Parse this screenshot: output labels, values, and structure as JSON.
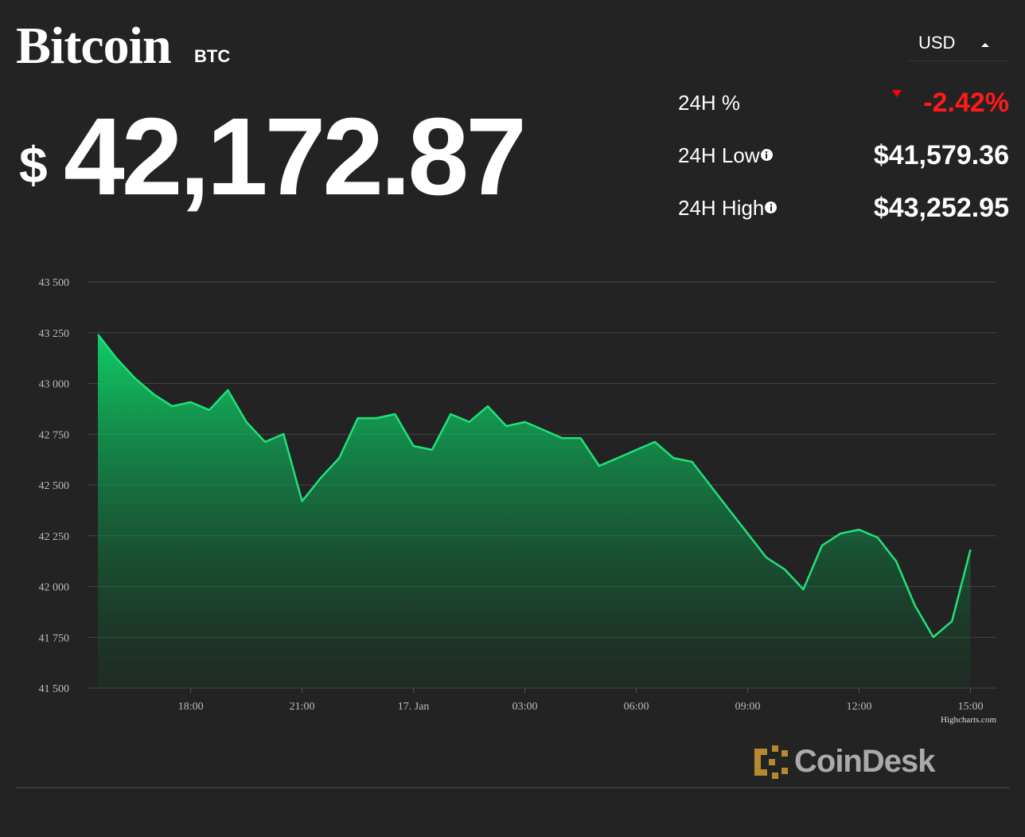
{
  "header": {
    "title": "Bitcoin",
    "symbol": "BTC",
    "currency_symbol": "$",
    "price": "42,172.87",
    "currency": "USD"
  },
  "stats": [
    {
      "label": "24H %",
      "value": "-2.42%"
    },
    {
      "label": "24H Low",
      "value": "$41,579.36"
    },
    {
      "label": "24H High",
      "value": "$43,252.95"
    }
  ],
  "chart_data": {
    "type": "area",
    "color": "#1fe27a",
    "x": [
      "15:30",
      "16:00",
      "16:30",
      "17:00",
      "17:30",
      "18:00",
      "18:30",
      "19:00",
      "19:30",
      "20:00",
      "20:30",
      "21:00",
      "21:30",
      "22:00",
      "22:30",
      "23:00",
      "23:30",
      "00:00",
      "00:30",
      "01:00",
      "01:30",
      "02:00",
      "02:30",
      "03:00",
      "03:30",
      "04:00",
      "04:30",
      "05:00",
      "05:30",
      "06:00",
      "06:30",
      "07:00",
      "07:30",
      "08:00",
      "08:30",
      "09:00",
      "09:30",
      "10:00",
      "10:30",
      "11:00",
      "11:30",
      "12:00",
      "12:30",
      "13:00",
      "13:30",
      "14:00",
      "14:30",
      "15:00"
    ],
    "values": [
      43241,
      43124,
      43025,
      42947,
      42888,
      42908,
      42869,
      42967,
      42810,
      42712,
      42751,
      42420,
      42535,
      42633,
      42829,
      42829,
      42849,
      42692,
      42673,
      42849,
      42810,
      42888,
      42790,
      42810,
      42771,
      42731,
      42731,
      42594,
      42633,
      42673,
      42712,
      42633,
      42614,
      42496,
      42378,
      42261,
      42143,
      42084,
      41986,
      42202,
      42261,
      42280,
      42241,
      42124,
      41908,
      41751,
      41829,
      42182
    ],
    "ylim": [
      41500,
      43500
    ],
    "yticks": [
      {
        "value": 41500,
        "label": "41 500"
      },
      {
        "value": 41750,
        "label": "41 750"
      },
      {
        "value": 42000,
        "label": "42 000"
      },
      {
        "value": 42250,
        "label": "42 250"
      },
      {
        "value": 42500,
        "label": "42 500"
      },
      {
        "value": 42750,
        "label": "42 750"
      },
      {
        "value": 43000,
        "label": "43 000"
      },
      {
        "value": 43250,
        "label": "43 250"
      },
      {
        "value": 43500,
        "label": "43 500"
      }
    ],
    "xticks": [
      "18:00",
      "21:00",
      {
        "value": "00:00",
        "label": "17. Jan"
      },
      "03:00",
      "06:00",
      "09:00",
      "12:00",
      "15:00"
    ],
    "grid": true,
    "credit": "Highcharts.com"
  },
  "brand": "CoinDesk"
}
